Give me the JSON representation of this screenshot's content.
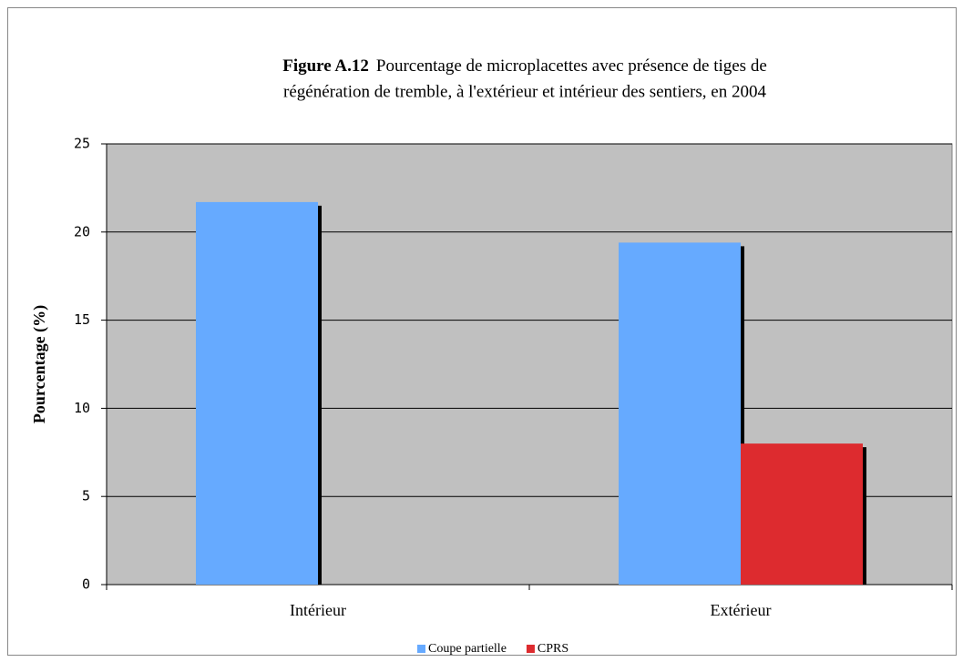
{
  "chart_data": {
    "type": "bar",
    "figure_label": "Figure A.12",
    "title_line1": "Pourcentage de microplacettes avec présence de tiges de",
    "title_line2": "régénération de tremble, à l'extérieur et intérieur des sentiers, en 2004",
    "ylabel": "Pourcentage (%)",
    "categories": [
      "Intérieur",
      "Extérieur"
    ],
    "series": [
      {
        "name": "Coupe partielle",
        "color": "#66aaff",
        "values": [
          21.7,
          19.4
        ]
      },
      {
        "name": "CPRS",
        "color": "#dd2b2f",
        "values": [
          0,
          8.0
        ]
      }
    ],
    "ylim": [
      0,
      25
    ],
    "yticks": [
      0,
      5,
      10,
      15,
      20,
      25
    ],
    "grid": true,
    "plot_background": "#c0c0c0",
    "legend": "bottom"
  }
}
